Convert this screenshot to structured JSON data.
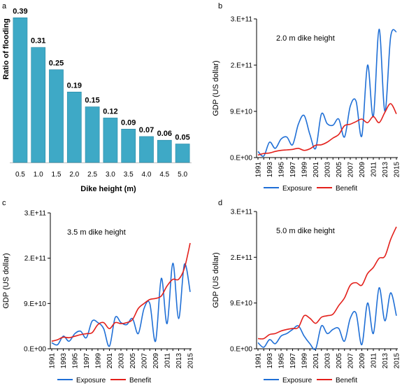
{
  "colors": {
    "bar_fill": "#3ea9c6",
    "bar_stroke": "#2b8aa6",
    "exposure": "#1f6fd6",
    "benefit": "#e3201b",
    "axis": "#000000"
  },
  "chart_data": [
    {
      "panel": "a",
      "type": "bar",
      "title": "",
      "xlabel": "Dike height (m)",
      "ylabel": "Ratio of flooding",
      "categories": [
        "0.5",
        "1.0",
        "1.5",
        "2.0",
        "2.5",
        "3.0",
        "3.5",
        "4.0",
        "4.5",
        "5.0"
      ],
      "values": [
        0.39,
        0.31,
        0.25,
        0.19,
        0.15,
        0.12,
        0.09,
        0.07,
        0.06,
        0.05
      ],
      "value_labels": [
        "0.39",
        "0.31",
        "0.25",
        "0.19",
        "0.15",
        "0.12",
        "0.09",
        "0.07",
        "0.06",
        "0.05"
      ],
      "ylim": [
        0,
        0.4
      ],
      "grid": false
    },
    {
      "panel": "b",
      "type": "line",
      "annotation": "2.0 m dike height",
      "xlabel": "",
      "ylabel": "GDP (US dollar)",
      "x": [
        1991,
        1992,
        1993,
        1994,
        1995,
        1996,
        1997,
        1998,
        1999,
        2000,
        2001,
        2002,
        2003,
        2004,
        2005,
        2006,
        2007,
        2008,
        2009,
        2010,
        2011,
        2012,
        2013,
        2014,
        2015
      ],
      "xticks": [
        "1991",
        "1993",
        "1995",
        "1997",
        "1999",
        "2001",
        "2003",
        "2005",
        "2007",
        "2009",
        "2011",
        "2013",
        "2015"
      ],
      "yticks": [
        {
          "value": 0,
          "label": "0.E+00"
        },
        {
          "value": 90000000000,
          "label": "9.E+10"
        },
        {
          "value": 180000000000,
          "label": "2.E+11"
        },
        {
          "value": 270000000000,
          "label": "3.E+11"
        }
      ],
      "ylim": [
        0,
        270000000000
      ],
      "series": [
        {
          "name": "Exposure",
          "values": [
            12000000000,
            3000000000,
            30000000000,
            18000000000,
            36000000000,
            40000000000,
            25000000000,
            65000000000,
            82000000000,
            45000000000,
            18000000000,
            85000000000,
            66000000000,
            63000000000,
            75000000000,
            40000000000,
            100000000000,
            110000000000,
            42000000000,
            180000000000,
            80000000000,
            250000000000,
            90000000000,
            235000000000,
            245000000000
          ]
        },
        {
          "name": "Benefit",
          "values": [
            5000000000,
            8000000000,
            9000000000,
            12000000000,
            14000000000,
            15000000000,
            16000000000,
            18000000000,
            14000000000,
            17000000000,
            24000000000,
            25000000000,
            30000000000,
            38000000000,
            45000000000,
            62000000000,
            65000000000,
            70000000000,
            75000000000,
            68000000000,
            80000000000,
            68000000000,
            88000000000,
            105000000000,
            85000000000
          ]
        }
      ],
      "legend": "bottom",
      "grid": false
    },
    {
      "panel": "c",
      "type": "line",
      "annotation": "3.5 m dike height",
      "xlabel": "",
      "ylabel": "GDP (US dollar)",
      "x": [
        1991,
        1992,
        1993,
        1994,
        1995,
        1996,
        1997,
        1998,
        1999,
        2000,
        2001,
        2002,
        2003,
        2004,
        2005,
        2006,
        2007,
        2008,
        2009,
        2010,
        2011,
        2012,
        2013,
        2014,
        2015
      ],
      "xticks": [
        "1991",
        "1993",
        "1995",
        "1997",
        "1999",
        "2001",
        "2003",
        "2005",
        "2007",
        "2009",
        "2011",
        "2013",
        "2015"
      ],
      "yticks": [
        {
          "value": 0,
          "label": "0.E+00"
        },
        {
          "value": 90000000000,
          "label": "9.E+10"
        },
        {
          "value": 180000000000,
          "label": "2.E+11"
        },
        {
          "value": 270000000000,
          "label": "3.E+11"
        }
      ],
      "ylim": [
        0,
        270000000000
      ],
      "series": [
        {
          "name": "Exposure",
          "values": [
            12000000000,
            8000000000,
            25000000000,
            15000000000,
            30000000000,
            35000000000,
            22000000000,
            55000000000,
            52000000000,
            40000000000,
            5000000000,
            62000000000,
            52000000000,
            48000000000,
            60000000000,
            30000000000,
            80000000000,
            90000000000,
            15000000000,
            140000000000,
            50000000000,
            170000000000,
            60000000000,
            168000000000,
            113000000000
          ]
        },
        {
          "name": "Benefit",
          "values": [
            15000000000,
            18000000000,
            23000000000,
            22000000000,
            25000000000,
            28000000000,
            30000000000,
            32000000000,
            48000000000,
            52000000000,
            40000000000,
            52000000000,
            50000000000,
            52000000000,
            58000000000,
            80000000000,
            90000000000,
            98000000000,
            100000000000,
            105000000000,
            125000000000,
            138000000000,
            138000000000,
            160000000000,
            210000000000
          ]
        }
      ],
      "legend": "bottom",
      "grid": false
    },
    {
      "panel": "d",
      "type": "line",
      "annotation": "5.0 m dike height",
      "xlabel": "",
      "ylabel": "GDP (US dollar)",
      "x": [
        1991,
        1992,
        1993,
        1994,
        1995,
        1996,
        1997,
        1998,
        1999,
        2000,
        2001,
        2002,
        2003,
        2004,
        2005,
        2006,
        2007,
        2008,
        2009,
        2010,
        2011,
        2012,
        2013,
        2014,
        2015
      ],
      "xticks": [
        "1991",
        "1993",
        "1995",
        "1997",
        "1999",
        "2001",
        "2003",
        "2005",
        "2007",
        "2009",
        "2011",
        "2013",
        "2015"
      ],
      "yticks": [
        {
          "value": 0,
          "label": "0.E+00"
        },
        {
          "value": 90000000000,
          "label": "9.E+10"
        },
        {
          "value": 180000000000,
          "label": "2.E+11"
        },
        {
          "value": 270000000000,
          "label": "3.E+11"
        }
      ],
      "ylim": [
        0,
        270000000000
      ],
      "series": [
        {
          "name": "Exposure",
          "values": [
            12000000000,
            3000000000,
            18000000000,
            10000000000,
            25000000000,
            30000000000,
            38000000000,
            45000000000,
            25000000000,
            10000000000,
            0,
            45000000000,
            30000000000,
            38000000000,
            40000000000,
            15000000000,
            60000000000,
            70000000000,
            8000000000,
            90000000000,
            30000000000,
            120000000000,
            55000000000,
            110000000000,
            65000000000
          ]
        },
        {
          "name": "Benefit",
          "values": [
            20000000000,
            20000000000,
            28000000000,
            30000000000,
            35000000000,
            38000000000,
            40000000000,
            42000000000,
            65000000000,
            60000000000,
            50000000000,
            62000000000,
            65000000000,
            68000000000,
            85000000000,
            100000000000,
            125000000000,
            130000000000,
            125000000000,
            148000000000,
            160000000000,
            178000000000,
            182000000000,
            215000000000,
            240000000000
          ]
        }
      ],
      "legend": "bottom",
      "grid": false
    }
  ]
}
